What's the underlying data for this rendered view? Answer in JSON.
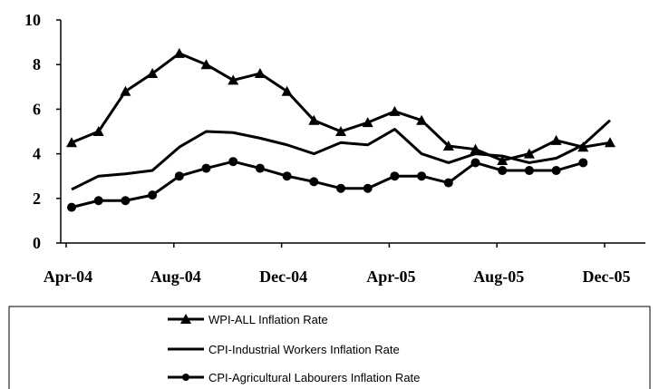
{
  "chart_data": {
    "type": "line",
    "categories": [
      "Apr-04",
      null,
      null,
      null,
      "Aug-04",
      null,
      null,
      null,
      "Dec-04",
      null,
      null,
      null,
      "Apr-05",
      null,
      null,
      null,
      "Aug-05",
      null,
      null,
      null,
      "Dec-05"
    ],
    "ylim": [
      0,
      10
    ],
    "yticks": [
      0,
      2,
      4,
      6,
      8,
      10
    ],
    "series": [
      {
        "name": "WPI-ALL Inflation Rate",
        "color": "#000000",
        "marker": "triangle",
        "values": [
          4.5,
          5.0,
          6.8,
          7.6,
          8.5,
          8.0,
          7.3,
          7.6,
          6.8,
          5.5,
          5.0,
          5.4,
          5.9,
          5.5,
          4.35,
          4.2,
          3.7,
          4.0,
          4.6,
          4.3,
          4.5
        ]
      },
      {
        "name": "CPI-Industrial Workers Inflation Rate",
        "color": "#000000",
        "marker": "none",
        "values": [
          2.4,
          3.0,
          3.1,
          3.25,
          4.3,
          5.0,
          4.95,
          4.7,
          4.4,
          4.0,
          4.5,
          4.4,
          5.1,
          4.0,
          3.6,
          4.0,
          3.9,
          3.6,
          3.8,
          4.4,
          5.5
        ]
      },
      {
        "name": "CPI-Agricultural Labourers Inflation Rate",
        "color": "#000000",
        "marker": "circle",
        "values": [
          1.6,
          1.9,
          1.9,
          2.15,
          3.0,
          3.35,
          3.65,
          3.35,
          3.0,
          2.75,
          2.45,
          2.45,
          3.0,
          3.0,
          2.7,
          3.6,
          3.25,
          3.25,
          3.25,
          3.6,
          null
        ]
      }
    ]
  }
}
